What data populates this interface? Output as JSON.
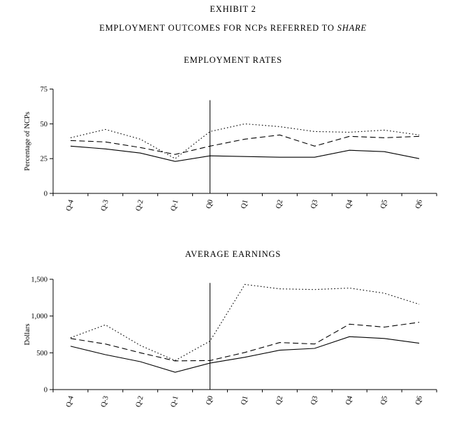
{
  "page": {
    "title": "EXHIBIT 2",
    "subtitle": {
      "prefix": "EMPLOYMENT OUTCOMES FOR NCPs REFERRED TO ",
      "italic": "SHARE"
    }
  },
  "chart_data": [
    {
      "type": "line",
      "title": "EMPLOYMENT RATES",
      "xlabel": "",
      "ylabel": "Percentage of NCPs",
      "categories": [
        "Q-4",
        "Q-3",
        "Q-2",
        "Q-1",
        "Q0",
        "Q1",
        "Q2",
        "Q3",
        "Q4",
        "Q5",
        "Q6"
      ],
      "ylim": [
        0,
        75
      ],
      "yticks": [
        0,
        25,
        50,
        75
      ],
      "ytick_labels": [
        "0",
        "25",
        "50",
        "75"
      ],
      "grid": false,
      "legend": "none",
      "line_color": "#000000",
      "reference_line": {
        "category": "Q0",
        "from": 0,
        "to": 67
      },
      "series": [
        {
          "name": "dotted",
          "style": "dotted",
          "values": [
            40,
            46,
            39,
            25,
            44.5,
            50,
            48,
            44.5,
            44,
            45.5,
            42
          ]
        },
        {
          "name": "dashed",
          "style": "dashed",
          "values": [
            38,
            37,
            33,
            28,
            34,
            39,
            42,
            34,
            41,
            40,
            41
          ]
        },
        {
          "name": "solid",
          "style": "solid",
          "values": [
            34,
            32,
            29,
            23,
            27,
            26.5,
            26,
            26,
            31,
            30,
            25
          ]
        }
      ]
    },
    {
      "type": "line",
      "title": "AVERAGE EARNINGS",
      "xlabel": "",
      "ylabel": "Dollars",
      "categories": [
        "Q-4",
        "Q-3",
        "Q-2",
        "Q-1",
        "Q0",
        "Q1",
        "Q2",
        "Q3",
        "Q4",
        "Q5",
        "Q6"
      ],
      "ylim": [
        0,
        1500
      ],
      "yticks": [
        0,
        500,
        1000,
        1500
      ],
      "ytick_labels": [
        "0",
        "500",
        "1,000",
        "1,500"
      ],
      "grid": false,
      "legend": "none",
      "line_color": "#000000",
      "reference_line": {
        "category": "Q0",
        "from": 0,
        "to": 1450
      },
      "series": [
        {
          "name": "dotted",
          "style": "dotted",
          "values": [
            705,
            880,
            600,
            395,
            660,
            1430,
            1370,
            1360,
            1380,
            1310,
            1160
          ]
        },
        {
          "name": "dashed",
          "style": "dashed",
          "values": [
            695,
            620,
            500,
            390,
            395,
            505,
            640,
            620,
            890,
            850,
            915
          ]
        },
        {
          "name": "solid",
          "style": "solid",
          "values": [
            590,
            475,
            380,
            235,
            360,
            440,
            535,
            560,
            720,
            695,
            630
          ]
        }
      ]
    }
  ]
}
